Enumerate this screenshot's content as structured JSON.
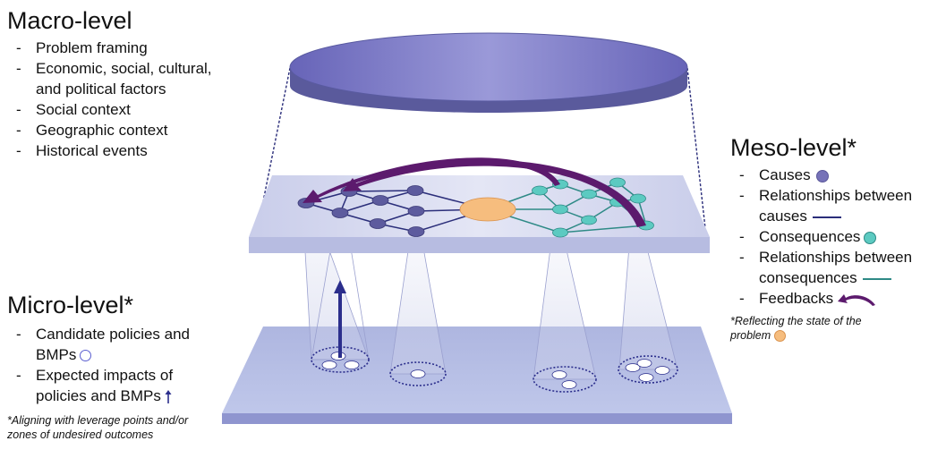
{
  "colors": {
    "cause_node": "#7672b8",
    "cause_line": "#2b2e7a",
    "consequence_node": "#5ccac1",
    "consequence_line": "#2e8a86",
    "feedback": "#5c1a6d",
    "problem": "#f6bd7e",
    "macro_disc": "#7b79c8",
    "micro_arrow": "#2b2e8c"
  },
  "macro": {
    "title": "Macro-level",
    "items": [
      "Problem framing",
      "Economic, social, cultural, and political factors",
      "Social context",
      "Geographic context",
      "Historical events"
    ]
  },
  "meso": {
    "title": "Meso-level*",
    "items": [
      {
        "text": "Causes",
        "symbol": "cause-dot-icon"
      },
      {
        "text": "Relationships between causes",
        "symbol": "cause-line-icon"
      },
      {
        "text": "Consequences",
        "symbol": "consequence-dot-icon"
      },
      {
        "text": "Relationships between consequences",
        "symbol": "consequence-line-icon"
      },
      {
        "text": "Feedbacks",
        "symbol": "feedback-arrow-icon"
      }
    ],
    "note": "*Reflecting the state of the problem"
  },
  "micro": {
    "title": "Micro-level*",
    "items": [
      {
        "text": "Candidate policies and BMPs",
        "symbol": "policy-circle-icon"
      },
      {
        "text": "Expected impacts of policies and BMPs",
        "symbol": "impact-arrow-icon"
      }
    ],
    "note": "*Aligning with leverage points and/or zones of undesired outcomes"
  }
}
